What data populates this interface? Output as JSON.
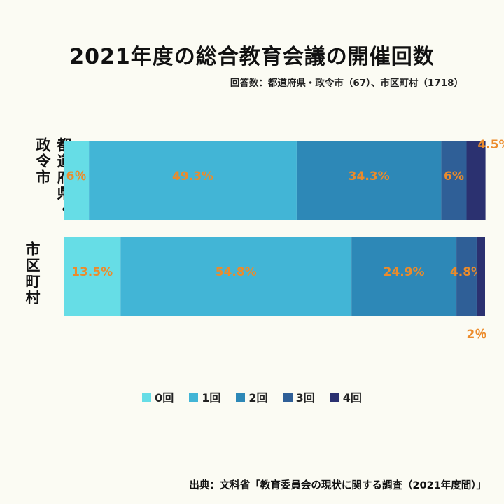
{
  "title": "2021年度の総合教育会議の開催回数",
  "subtitle": "回答数：都道府県・政令市（67）、市区町村（1718）",
  "source": "出典：文科省「教育委員会の現状に関する調査（2021年度間）」",
  "colors": {
    "series": [
      "#66dde6",
      "#42b5d6",
      "#2d88b7",
      "#2f5f97",
      "#2b3170"
    ],
    "label": "#ec8b2a",
    "background": "#fbfbf3"
  },
  "chart_data": {
    "type": "bar",
    "orientation": "horizontal",
    "stacked": true,
    "categories": [
      "都道府県・政令市",
      "市区町村"
    ],
    "series": [
      {
        "name": "0回",
        "values": [
          6,
          13.5
        ],
        "labels": [
          "6％",
          "13.5%"
        ]
      },
      {
        "name": "1回",
        "values": [
          49.3,
          54.8
        ],
        "labels": [
          "49.3%",
          "54.8%"
        ]
      },
      {
        "name": "2回",
        "values": [
          34.3,
          24.9
        ],
        "labels": [
          "34.3%",
          "24.9%"
        ]
      },
      {
        "name": "3回",
        "values": [
          6,
          4.8
        ],
        "labels": [
          "6%",
          "4.8%"
        ]
      },
      {
        "name": "4回",
        "values": [
          4.5,
          2
        ],
        "labels": [
          "4.5%",
          "2％"
        ]
      }
    ],
    "xlim": [
      0,
      100
    ],
    "grid": false,
    "legend": "bottom"
  }
}
